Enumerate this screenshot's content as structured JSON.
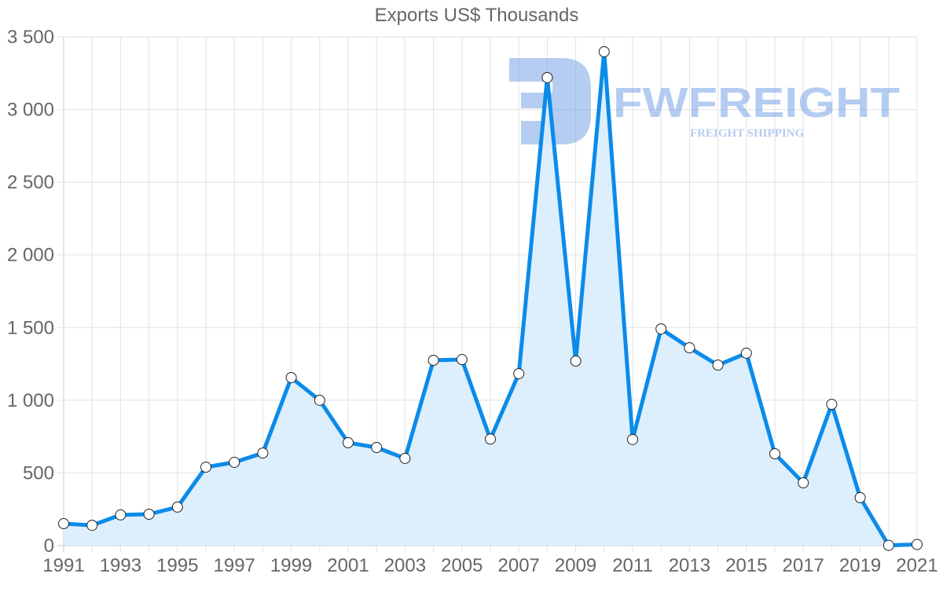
{
  "chart_data": {
    "type": "line",
    "title": "Exports US$ Thousands",
    "xlabel": "",
    "ylabel": "",
    "ylim": [
      0,
      3500
    ],
    "yticks": [
      0,
      500,
      1000,
      1500,
      2000,
      2500,
      3000,
      3500
    ],
    "ytick_labels": [
      "0",
      "500",
      "1 000",
      "1 500",
      "2 000",
      "2 500",
      "3 000",
      "3 500"
    ],
    "xtick_labels": [
      "1991",
      "1993",
      "1995",
      "1997",
      "1999",
      "2001",
      "2003",
      "2005",
      "2007",
      "2009",
      "2011",
      "2013",
      "2015",
      "2017",
      "2019",
      "2021"
    ],
    "grid": true,
    "filled_area": true,
    "line_color": "#0b8bea",
    "fill_color": "#d9ecfc",
    "categories": [
      "1991",
      "1992",
      "1993",
      "1994",
      "1995",
      "1996",
      "1997",
      "1998",
      "1999",
      "2000",
      "2001",
      "2002",
      "2003",
      "2004",
      "2005",
      "2006",
      "2007",
      "2008",
      "2009",
      "2010",
      "2011",
      "2012",
      "2013",
      "2014",
      "2015",
      "2016",
      "2017",
      "2018",
      "2019",
      "2020",
      "2021"
    ],
    "series": [
      {
        "name": "Exports US$ Thousands",
        "values": [
          151,
          140,
          211,
          216,
          265,
          540,
          573,
          637,
          1156,
          1000,
          708,
          675,
          600,
          1275,
          1280,
          733,
          1183,
          3220,
          1270,
          3398,
          730,
          1491,
          1361,
          1242,
          1324,
          632,
          432,
          972,
          330,
          2,
          8
        ]
      }
    ]
  },
  "watermark": {
    "brand": "FWFREIGHT",
    "tagline": "FREIGHT SHIPPING",
    "color": "#6d9be6"
  }
}
